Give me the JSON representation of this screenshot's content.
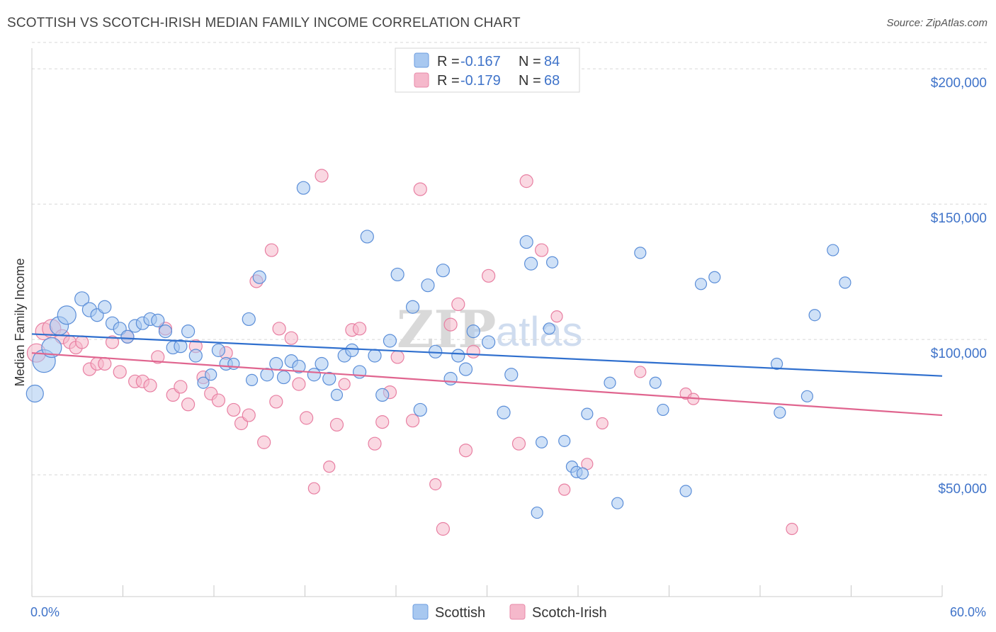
{
  "header": {
    "title": "SCOTTISH VS SCOTCH-IRISH MEDIAN FAMILY INCOME CORRELATION CHART",
    "source": "Source: ZipAtlas.com"
  },
  "watermark": {
    "zip": "ZIP",
    "atlas": "atlas"
  },
  "legend_top": [
    {
      "r_label": "R =",
      "r_value": "-0.167",
      "n_label": "N =",
      "n_value": "84",
      "color": "#a8c8f0"
    },
    {
      "r_label": "R =",
      "r_value": "-0.179",
      "n_label": "N =",
      "n_value": "68",
      "color": "#f5b8cb"
    }
  ],
  "legend_bottom": [
    {
      "label": "Scottish",
      "color": "#a8c8f0"
    },
    {
      "label": "Scotch-Irish",
      "color": "#f5b8cb"
    }
  ],
  "colors": {
    "scottish_fill": "#a8c8f0",
    "scottish_stroke": "#5b8ed8",
    "scottish_line": "#2f6fce",
    "irish_fill": "#f5b8cb",
    "irish_stroke": "#e87fa2",
    "irish_line": "#e0658f",
    "axis_text": "#3f73c9",
    "grid": "#d8d8d8"
  },
  "chart_data": {
    "type": "scatter",
    "ylabel": "Median Family Income",
    "x_tick_labels": [
      "0.0%",
      "60.0%"
    ],
    "y_tick_labels": [
      "$50,000",
      "$100,000",
      "$150,000",
      "$200,000"
    ],
    "y_ticks": [
      50000,
      100000,
      150000,
      200000
    ],
    "xlim": [
      0,
      60
    ],
    "ylim": [
      5000,
      210000
    ],
    "grid": true,
    "legend_position": "top-center",
    "series": [
      {
        "name": "Scottish",
        "trend": [
          [
            0,
            102000
          ],
          [
            60,
            86500
          ]
        ],
        "points": [
          [
            0.2,
            80000,
            12
          ],
          [
            0.8,
            92000,
            16
          ],
          [
            1.3,
            97000,
            14
          ],
          [
            1.8,
            105000,
            13
          ],
          [
            2.3,
            109000,
            13
          ],
          [
            3.3,
            115000,
            10
          ],
          [
            3.8,
            111000,
            10
          ],
          [
            4.3,
            109000,
            9
          ],
          [
            4.8,
            112000,
            9
          ],
          [
            5.3,
            106000,
            9
          ],
          [
            5.8,
            104000,
            9
          ],
          [
            6.3,
            101000,
            9
          ],
          [
            6.8,
            105000,
            9
          ],
          [
            7.3,
            106000,
            9
          ],
          [
            7.8,
            107500,
            9
          ],
          [
            8.3,
            107000,
            9
          ],
          [
            8.8,
            103000,
            9
          ],
          [
            9.3,
            97000,
            9
          ],
          [
            9.8,
            97500,
            9
          ],
          [
            10.3,
            103000,
            9
          ],
          [
            10.8,
            94000,
            9
          ],
          [
            11.3,
            84000,
            8
          ],
          [
            11.8,
            87000,
            8
          ],
          [
            12.3,
            96000,
            9
          ],
          [
            12.8,
            91000,
            9
          ],
          [
            13.3,
            91000,
            8
          ],
          [
            14.3,
            107500,
            9
          ],
          [
            14.5,
            85000,
            8
          ],
          [
            15.0,
            123000,
            9
          ],
          [
            15.5,
            87000,
            9
          ],
          [
            16.1,
            91000,
            9
          ],
          [
            16.6,
            86000,
            9
          ],
          [
            17.1,
            92000,
            9
          ],
          [
            17.6,
            90000,
            9
          ],
          [
            17.9,
            156000,
            9
          ],
          [
            18.6,
            87000,
            9
          ],
          [
            19.1,
            91000,
            9
          ],
          [
            19.6,
            85500,
            9
          ],
          [
            20.1,
            79500,
            8
          ],
          [
            20.6,
            94000,
            9
          ],
          [
            21.1,
            96000,
            9
          ],
          [
            21.6,
            88000,
            9
          ],
          [
            22.1,
            138000,
            9
          ],
          [
            22.6,
            94000,
            9
          ],
          [
            23.1,
            79500,
            9
          ],
          [
            23.6,
            99500,
            9
          ],
          [
            24.1,
            124000,
            9
          ],
          [
            25.1,
            112000,
            9
          ],
          [
            25.6,
            74000,
            9
          ],
          [
            26.1,
            120000,
            9
          ],
          [
            26.6,
            95500,
            9
          ],
          [
            27.1,
            125500,
            9
          ],
          [
            27.6,
            85500,
            9
          ],
          [
            28.1,
            94000,
            9
          ],
          [
            28.6,
            89000,
            9
          ],
          [
            29.1,
            103000,
            9
          ],
          [
            30.1,
            99000,
            9
          ],
          [
            31.1,
            73000,
            9
          ],
          [
            31.6,
            87000,
            9
          ],
          [
            32.6,
            136000,
            9
          ],
          [
            32.9,
            128000,
            9
          ],
          [
            33.3,
            36000,
            8
          ],
          [
            33.6,
            62000,
            8
          ],
          [
            34.1,
            104000,
            8
          ],
          [
            34.3,
            128500,
            8
          ],
          [
            35.1,
            62500,
            8
          ],
          [
            35.6,
            53000,
            8
          ],
          [
            35.9,
            51000,
            8
          ],
          [
            36.3,
            50500,
            8
          ],
          [
            36.6,
            72500,
            8
          ],
          [
            38.1,
            84000,
            8
          ],
          [
            38.6,
            39500,
            8
          ],
          [
            40.1,
            132000,
            8
          ],
          [
            41.1,
            84000,
            8
          ],
          [
            41.6,
            74000,
            8
          ],
          [
            43.1,
            44000,
            8
          ],
          [
            44.1,
            120500,
            8
          ],
          [
            45.0,
            123000,
            8
          ],
          [
            49.1,
            91000,
            8
          ],
          [
            49.3,
            73000,
            8
          ],
          [
            51.1,
            79000,
            8
          ],
          [
            51.6,
            109000,
            8
          ],
          [
            52.8,
            133000,
            8
          ],
          [
            53.6,
            121000,
            8
          ]
        ]
      },
      {
        "name": "Scotch-Irish",
        "trend": [
          [
            0,
            95000
          ],
          [
            60,
            72000
          ]
        ],
        "points": [
          [
            0.3,
            95000,
            13
          ],
          [
            0.8,
            103000,
            12
          ],
          [
            1.3,
            104000,
            13
          ],
          [
            2.0,
            101000,
            10
          ],
          [
            2.5,
            99000,
            9
          ],
          [
            2.9,
            97000,
            9
          ],
          [
            3.3,
            99000,
            9
          ],
          [
            3.8,
            89000,
            9
          ],
          [
            4.3,
            91000,
            9
          ],
          [
            4.8,
            91000,
            9
          ],
          [
            5.3,
            99000,
            9
          ],
          [
            5.8,
            88000,
            9
          ],
          [
            6.3,
            101000,
            9
          ],
          [
            6.8,
            84500,
            9
          ],
          [
            7.3,
            84500,
            9
          ],
          [
            7.8,
            83000,
            9
          ],
          [
            8.3,
            93500,
            9
          ],
          [
            8.8,
            104000,
            9
          ],
          [
            9.3,
            79500,
            9
          ],
          [
            9.8,
            82500,
            9
          ],
          [
            10.3,
            76000,
            9
          ],
          [
            10.8,
            97500,
            9
          ],
          [
            11.3,
            86000,
            9
          ],
          [
            11.8,
            80000,
            9
          ],
          [
            12.3,
            77500,
            9
          ],
          [
            12.8,
            95000,
            9
          ],
          [
            13.3,
            74000,
            9
          ],
          [
            13.8,
            69000,
            9
          ],
          [
            14.3,
            72000,
            9
          ],
          [
            14.8,
            121500,
            9
          ],
          [
            15.3,
            62000,
            9
          ],
          [
            15.8,
            133000,
            9
          ],
          [
            16.1,
            77000,
            9
          ],
          [
            16.3,
            104000,
            9
          ],
          [
            17.1,
            100500,
            9
          ],
          [
            17.6,
            83500,
            9
          ],
          [
            18.1,
            71000,
            9
          ],
          [
            18.6,
            45000,
            8
          ],
          [
            19.1,
            160500,
            9
          ],
          [
            19.6,
            53000,
            8
          ],
          [
            20.1,
            68500,
            9
          ],
          [
            20.6,
            83500,
            8
          ],
          [
            21.1,
            103500,
            9
          ],
          [
            21.6,
            104000,
            9
          ],
          [
            22.6,
            61500,
            9
          ],
          [
            23.1,
            69500,
            9
          ],
          [
            23.6,
            80500,
            9
          ],
          [
            24.1,
            93500,
            9
          ],
          [
            25.1,
            70000,
            9
          ],
          [
            25.6,
            155500,
            9
          ],
          [
            26.6,
            46500,
            8
          ],
          [
            27.1,
            30000,
            9
          ],
          [
            27.6,
            105500,
            9
          ],
          [
            28.1,
            113000,
            9
          ],
          [
            28.6,
            59000,
            9
          ],
          [
            29.1,
            95500,
            9
          ],
          [
            30.1,
            123500,
            9
          ],
          [
            32.1,
            61500,
            9
          ],
          [
            32.6,
            158500,
            9
          ],
          [
            33.6,
            133000,
            9
          ],
          [
            34.6,
            108500,
            8
          ],
          [
            35.1,
            44500,
            8
          ],
          [
            36.6,
            54000,
            8
          ],
          [
            37.6,
            69000,
            8
          ],
          [
            40.1,
            88000,
            8
          ],
          [
            43.1,
            80000,
            8
          ],
          [
            43.6,
            78000,
            8
          ],
          [
            50.1,
            30000,
            8
          ]
        ]
      }
    ]
  }
}
